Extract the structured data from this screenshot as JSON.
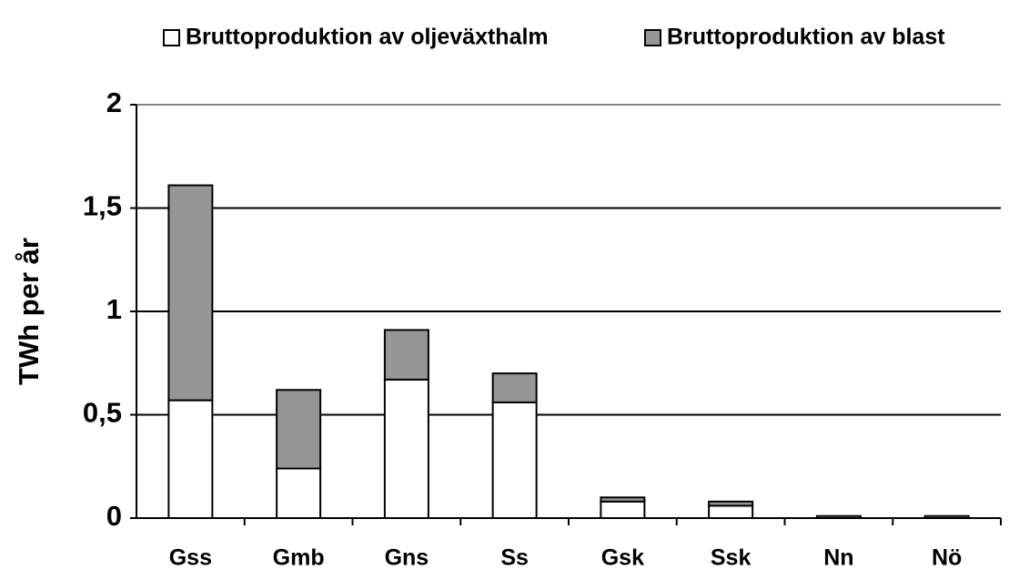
{
  "chart_data": {
    "type": "stacked_bar",
    "y_label": "TWh per år",
    "categories": [
      "Gss",
      "Gmb",
      "Gns",
      "Ss",
      "Gsk",
      "Ssk",
      "Nn",
      "Nö"
    ],
    "series": [
      {
        "name": "Bruttoproduktion av oljeväxthalm",
        "color": "#ffffff",
        "values": [
          0.57,
          0.24,
          0.67,
          0.56,
          0.08,
          0.06,
          0.01,
          0.01
        ]
      },
      {
        "name": "Bruttoproduktion av blast",
        "color": "#969696",
        "values": [
          1.04,
          0.38,
          0.24,
          0.14,
          0.02,
          0.02,
          0,
          0
        ]
      }
    ],
    "ylim": [
      0,
      2
    ],
    "yticks": [
      0,
      {
        "value": 0.5,
        "label": "0,5"
      },
      1,
      {
        "value": 1.5,
        "label": "1,5"
      },
      2
    ],
    "grid": true,
    "legend": "top"
  }
}
